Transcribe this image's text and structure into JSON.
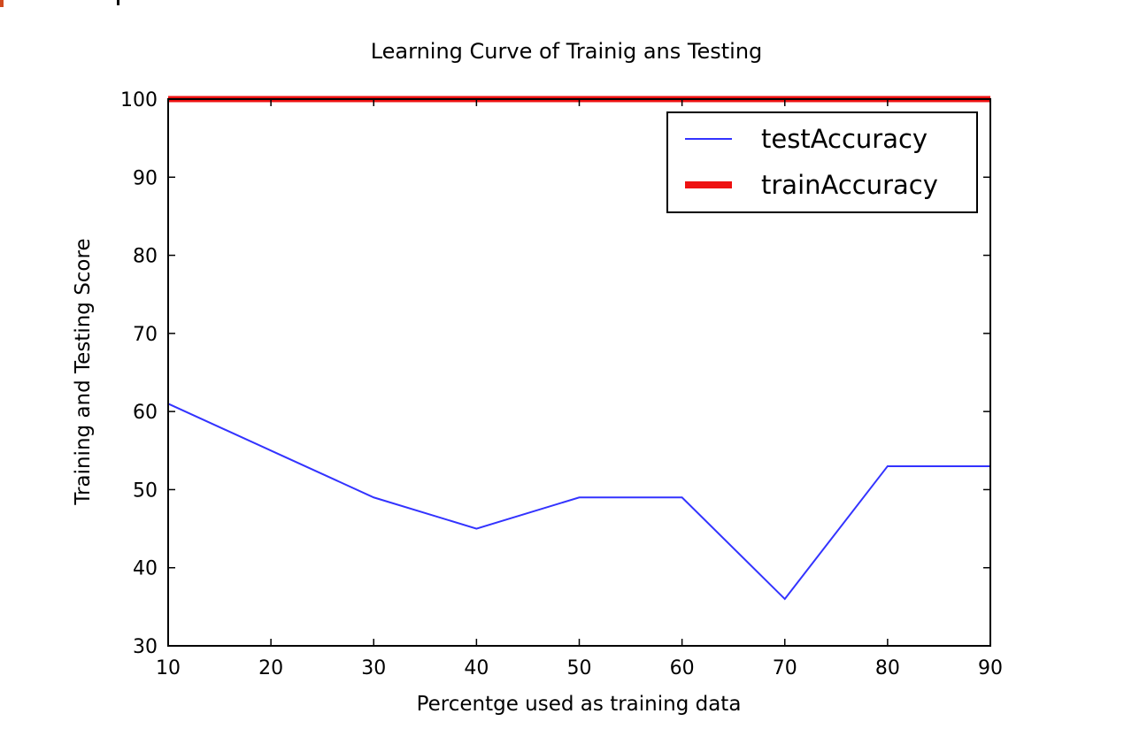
{
  "chart_data": {
    "type": "line",
    "title": "Learning Curve of Trainig ans Testing",
    "xlabel": "Percentge used as training data",
    "ylabel": "Training and Testing Score",
    "xlim": [
      10,
      90
    ],
    "ylim": [
      30,
      100
    ],
    "xticks": [
      10,
      20,
      30,
      40,
      50,
      60,
      70,
      80,
      90
    ],
    "yticks": [
      30,
      40,
      50,
      60,
      70,
      80,
      90,
      100
    ],
    "grid": false,
    "legend_position": "top-right",
    "series": [
      {
        "name": "testAccuracy",
        "color": "#3333ff",
        "x": [
          10,
          20,
          30,
          40,
          50,
          60,
          70,
          80,
          90
        ],
        "y": [
          61,
          55,
          49,
          45,
          49,
          49,
          36,
          53,
          53
        ]
      },
      {
        "name": "trainAccuracy",
        "color": "#ee1111",
        "x": [
          10,
          20,
          30,
          40,
          50,
          60,
          70,
          80,
          90
        ],
        "y": [
          100,
          100,
          100,
          100,
          100,
          100,
          100,
          100,
          100
        ]
      }
    ]
  }
}
